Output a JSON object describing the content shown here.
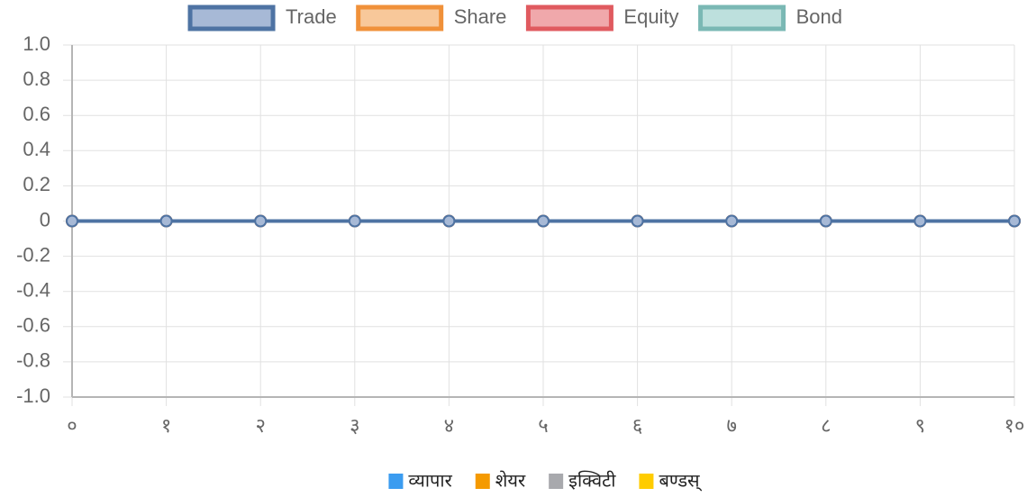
{
  "chart_data": {
    "type": "line",
    "categories": [
      "०",
      "१",
      "२",
      "३",
      "४",
      "५",
      "६",
      "७",
      "८",
      "९",
      "१०"
    ],
    "series": [
      {
        "name": "Trade",
        "color": "#4e73a3",
        "fill": "#a7b9d6",
        "values": [
          0,
          0,
          0,
          0,
          0,
          0,
          0,
          0,
          0,
          0,
          0
        ]
      },
      {
        "name": "Share",
        "color": "#f0913a",
        "fill": "#f8c89a",
        "values": [
          0,
          0,
          0,
          0,
          0,
          0,
          0,
          0,
          0,
          0,
          0
        ]
      },
      {
        "name": "Equity",
        "color": "#e05a5f",
        "fill": "#f0a8ab",
        "values": [
          0,
          0,
          0,
          0,
          0,
          0,
          0,
          0,
          0,
          0,
          0
        ]
      },
      {
        "name": "Bond",
        "color": "#7ab8b4",
        "fill": "#bde0dd",
        "values": [
          0,
          0,
          0,
          0,
          0,
          0,
          0,
          0,
          0,
          0,
          0
        ]
      }
    ],
    "ylim": [
      -1,
      1
    ],
    "yticks": [
      {
        "value": -1,
        "label": "-1.0"
      },
      -0.8,
      -0.6,
      -0.4,
      -0.2,
      0,
      0.2,
      0.4,
      0.6,
      0.8,
      {
        "value": 1,
        "label": "1.0"
      }
    ],
    "grid": true,
    "legend": "top",
    "secondary_legend": [
      {
        "name": "व्यापार",
        "color": "#3b9cf0"
      },
      {
        "name": "शेयर",
        "color": "#f59a00"
      },
      {
        "name": "इक्विटी",
        "color": "#a8a9ad"
      },
      {
        "name": "बण्डस्",
        "color": "#ffcc00"
      }
    ]
  }
}
